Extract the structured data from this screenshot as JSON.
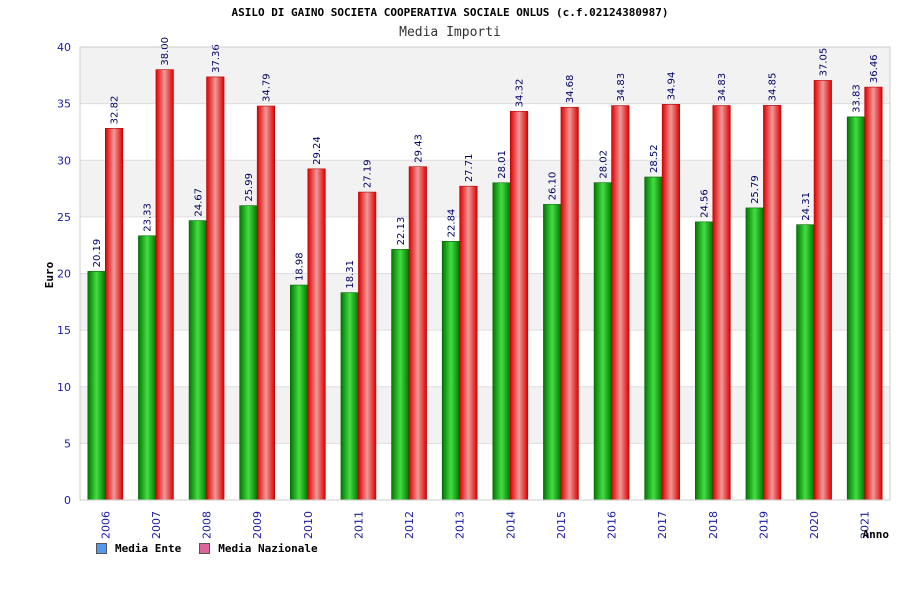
{
  "chart_data": {
    "type": "bar",
    "title": "ASILO DI GAINO SOCIETA COOPERATIVA SOCIALE ONLUS (c.f.02124380987)",
    "subtitle": "Media Importi",
    "xlabel": "Anno",
    "ylabel": "Euro",
    "ylim": [
      0,
      40
    ],
    "yticks": [
      0,
      5,
      10,
      15,
      20,
      25,
      30,
      35,
      40
    ],
    "grid": true,
    "legend_position": "bottom-left",
    "categories": [
      "2006",
      "2007",
      "2008",
      "2009",
      "2010",
      "2011",
      "2012",
      "2013",
      "2014",
      "2015",
      "2016",
      "2017",
      "2018",
      "2019",
      "2020",
      "2021"
    ],
    "series": [
      {
        "name": "Media Ente",
        "color": "#00aa00",
        "legend_color": "#5599ee",
        "values": [
          20.19,
          23.33,
          24.67,
          25.99,
          18.98,
          18.31,
          22.13,
          22.84,
          28.01,
          26.1,
          28.02,
          28.52,
          24.56,
          25.79,
          24.31,
          33.83
        ],
        "labels": [
          "20.19",
          "23.33",
          "24.67",
          "25.99",
          "18.98",
          "18.31",
          "22.13",
          "22.84",
          "28.01",
          "26.10",
          "28.02",
          "28.52",
          "24.56",
          "25.79",
          "24.31",
          "33.83"
        ]
      },
      {
        "name": "Media Nazionale",
        "color": "#ee1111",
        "legend_color": "#dd6699",
        "values": [
          32.82,
          38.0,
          37.36,
          34.79,
          29.24,
          27.19,
          29.43,
          27.71,
          34.32,
          34.68,
          34.83,
          34.94,
          34.83,
          34.85,
          37.05,
          36.46
        ],
        "labels": [
          "32.82",
          "38.00",
          "37.36",
          "34.79",
          "29.24",
          "27.19",
          "29.43",
          "27.71",
          "34.32",
          "34.68",
          "34.83",
          "34.94",
          "34.83",
          "34.85",
          "37.05",
          "36.46"
        ]
      }
    ]
  }
}
